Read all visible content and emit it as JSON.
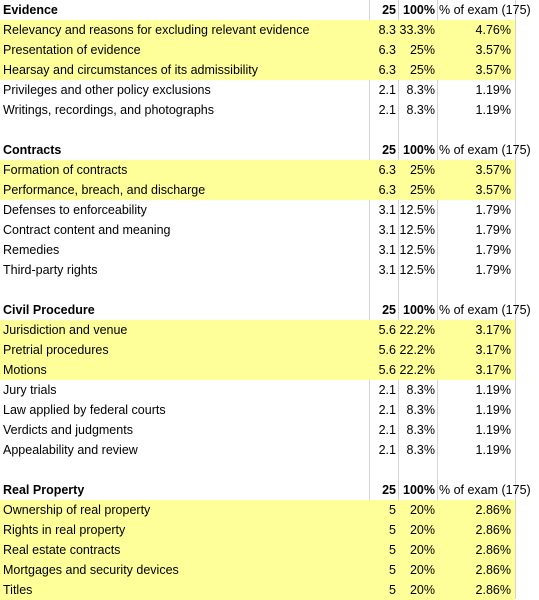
{
  "sections": [
    {
      "header": {
        "title": "Evidence",
        "total": "25",
        "pct": "100%",
        "exam": "% of exam (175)"
      },
      "rows": [
        {
          "label": "Relevancy and reasons for excluding relevant evidence",
          "value": "8.3",
          "pct": "33.3%",
          "exam": "4.76%",
          "highlight": true
        },
        {
          "label": "Presentation of evidence",
          "value": "6.3",
          "pct": "25%",
          "exam": "3.57%",
          "highlight": true
        },
        {
          "label": "Hearsay and circumstances of its admissibility",
          "value": "6.3",
          "pct": "25%",
          "exam": "3.57%",
          "highlight": true
        },
        {
          "label": "Privileges and other policy exclusions",
          "value": "2.1",
          "pct": "8.3%",
          "exam": "1.19%",
          "highlight": false
        },
        {
          "label": "Writings, recordings, and photographs",
          "value": "2.1",
          "pct": "8.3%",
          "exam": "1.19%",
          "highlight": false
        }
      ]
    },
    {
      "header": {
        "title": "Contracts",
        "total": "25",
        "pct": "100%",
        "exam": "% of exam (175)"
      },
      "rows": [
        {
          "label": "Formation of contracts",
          "value": "6.3",
          "pct": "25%",
          "exam": "3.57%",
          "highlight": true
        },
        {
          "label": "Performance, breach, and discharge",
          "value": "6.3",
          "pct": "25%",
          "exam": "3.57%",
          "highlight": true
        },
        {
          "label": "Defenses to enforceability",
          "value": "3.1",
          "pct": "12.5%",
          "exam": "1.79%",
          "highlight": false
        },
        {
          "label": "Contract content and meaning",
          "value": "3.1",
          "pct": "12.5%",
          "exam": "1.79%",
          "highlight": false
        },
        {
          "label": "Remedies",
          "value": "3.1",
          "pct": "12.5%",
          "exam": "1.79%",
          "highlight": false
        },
        {
          "label": "Third-party rights",
          "value": "3.1",
          "pct": "12.5%",
          "exam": "1.79%",
          "highlight": false
        }
      ]
    },
    {
      "header": {
        "title": "Civil Procedure",
        "total": "25",
        "pct": "100%",
        "exam": "% of exam (175)"
      },
      "rows": [
        {
          "label": "Jurisdiction and venue",
          "value": "5.6",
          "pct": "22.2%",
          "exam": "3.17%",
          "highlight": true
        },
        {
          "label": "Pretrial procedures",
          "value": "5.6",
          "pct": "22.2%",
          "exam": "3.17%",
          "highlight": true
        },
        {
          "label": "Motions",
          "value": "5.6",
          "pct": "22.2%",
          "exam": "3.17%",
          "highlight": true
        },
        {
          "label": "Jury trials",
          "value": "2.1",
          "pct": "8.3%",
          "exam": "1.19%",
          "highlight": false
        },
        {
          "label": "Law applied by federal courts",
          "value": "2.1",
          "pct": "8.3%",
          "exam": "1.19%",
          "highlight": false
        },
        {
          "label": "Verdicts and judgments",
          "value": "2.1",
          "pct": "8.3%",
          "exam": "1.19%",
          "highlight": false
        },
        {
          "label": "Appealability and review",
          "value": "2.1",
          "pct": "8.3%",
          "exam": "1.19%",
          "highlight": false
        }
      ]
    },
    {
      "header": {
        "title": "Real Property",
        "total": "25",
        "pct": "100%",
        "exam": "% of exam (175)"
      },
      "rows": [
        {
          "label": "Ownership of real property",
          "value": "5",
          "pct": "20%",
          "exam": "2.86%",
          "highlight": true
        },
        {
          "label": "Rights in real property",
          "value": "5",
          "pct": "20%",
          "exam": "2.86%",
          "highlight": true
        },
        {
          "label": "Real estate contracts",
          "value": "5",
          "pct": "20%",
          "exam": "2.86%",
          "highlight": true
        },
        {
          "label": "Mortgages and security devices",
          "value": "5",
          "pct": "20%",
          "exam": "2.86%",
          "highlight": true
        },
        {
          "label": "Titles",
          "value": "5",
          "pct": "20%",
          "exam": "2.86%",
          "highlight": true
        }
      ]
    }
  ],
  "colors": {
    "highlight": "#ffff99",
    "gridline": "#d4d4d4"
  }
}
